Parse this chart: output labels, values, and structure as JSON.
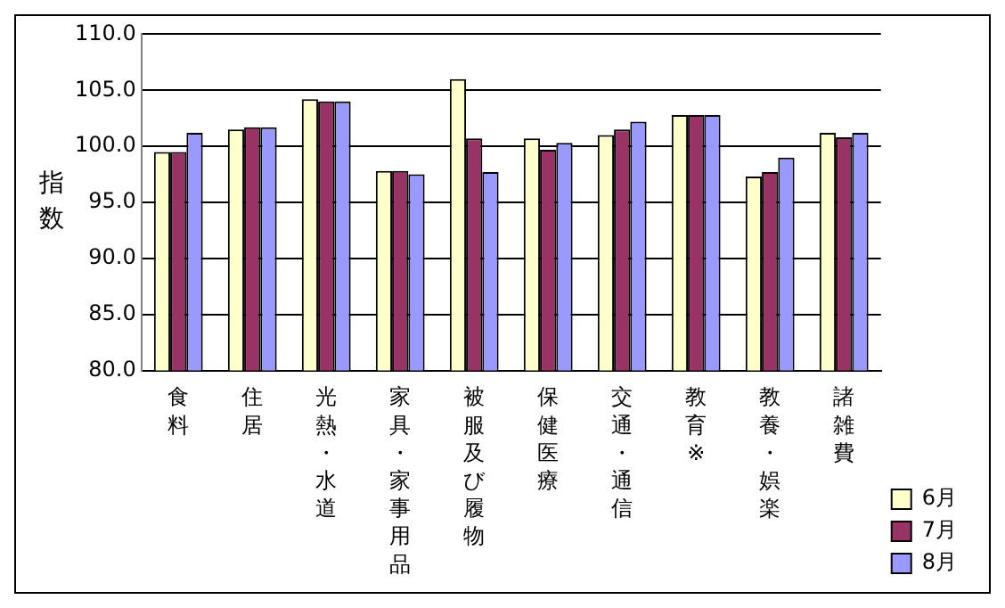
{
  "chart_data": {
    "type": "bar",
    "ylabel": "指数",
    "categories": [
      "食料",
      "住居",
      "光熱・水道",
      "家具・家事用品",
      "被服及び履物",
      "保健医療",
      "交通・通信",
      "教育※",
      "教養・娯楽",
      "諸雑費"
    ],
    "series": [
      {
        "name": "6月",
        "color": "#ffffcc",
        "values": [
          99.5,
          101.5,
          104.2,
          97.8,
          106.0,
          100.7,
          101.0,
          102.8,
          97.3,
          101.2
        ]
      },
      {
        "name": "7月",
        "color": "#993366",
        "values": [
          99.5,
          101.7,
          104.0,
          97.8,
          100.7,
          99.7,
          101.5,
          102.8,
          97.7,
          100.8
        ]
      },
      {
        "name": "8月",
        "color": "#9999ff",
        "values": [
          101.2,
          101.7,
          104.0,
          97.5,
          97.7,
          100.3,
          102.2,
          102.8,
          99.0,
          101.2
        ]
      }
    ],
    "ylim": [
      80,
      110
    ],
    "yticks": [
      {
        "value": 80,
        "label": "80.0"
      },
      {
        "value": 85,
        "label": "85.0"
      },
      {
        "value": 90,
        "label": "90.0"
      },
      {
        "value": 95,
        "label": "95.0"
      },
      {
        "value": 100,
        "label": "100.0"
      },
      {
        "value": 105,
        "label": "105.0"
      },
      {
        "value": 110,
        "label": "110.0"
      }
    ],
    "grid": "y",
    "legend": "bottom right"
  }
}
